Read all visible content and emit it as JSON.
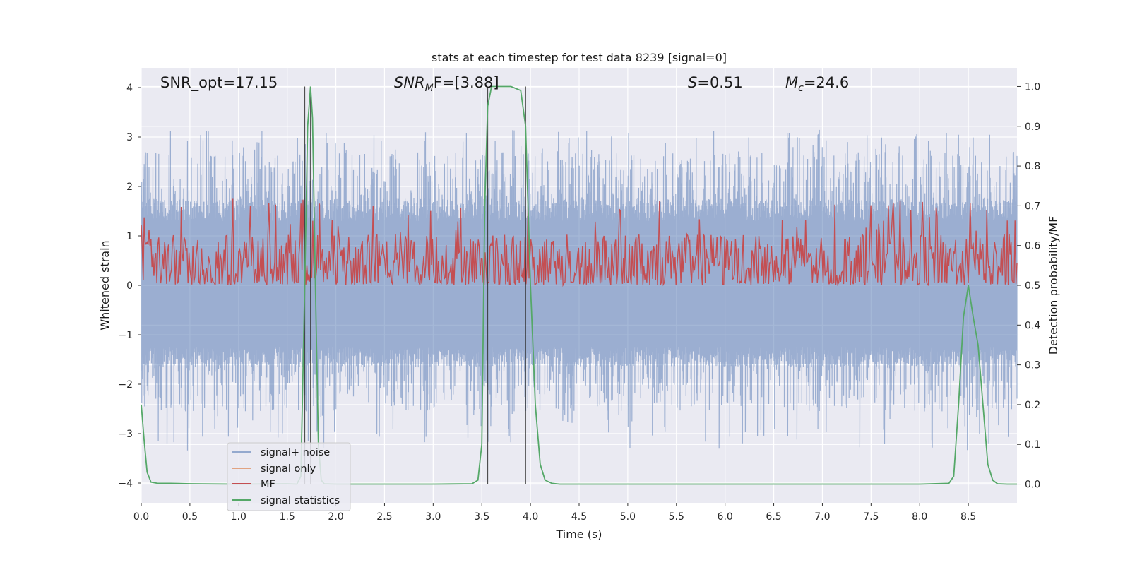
{
  "chart_data": {
    "type": "line",
    "title": "stats at each timestep for test data 8239 [signal=0]",
    "xlabel": "Time (s)",
    "ylabel": "Whitened strain",
    "y2label": "Detection probability/MF",
    "xlim": [
      0,
      9.0
    ],
    "ylim": [
      -4.4,
      4.4
    ],
    "y2lim": [
      -0.047,
      1.047
    ],
    "xticks": [
      0.0,
      0.5,
      1.0,
      1.5,
      2.0,
      2.5,
      3.0,
      3.5,
      4.0,
      4.5,
      5.0,
      5.5,
      6.0,
      6.5,
      7.0,
      7.5,
      8.0,
      8.5
    ],
    "xtick_labels": [
      "0.0",
      "0.5",
      "1.0",
      "1.5",
      "2.0",
      "2.5",
      "3.0",
      "3.5",
      "4.0",
      "4.5",
      "5.0",
      "5.5",
      "6.0",
      "6.5",
      "7.0",
      "7.5",
      "8.0",
      "8.5"
    ],
    "yticks": [
      -4,
      -3,
      -2,
      -1,
      0,
      1,
      2,
      3,
      4
    ],
    "ytick_labels": [
      "−4",
      "−3",
      "−2",
      "−1",
      "0",
      "1",
      "2",
      "3",
      "4"
    ],
    "y2ticks": [
      0.0,
      0.1,
      0.2,
      0.3,
      0.4,
      0.5,
      0.6,
      0.7,
      0.8,
      0.9,
      1.0
    ],
    "y2tick_labels": [
      "0.0",
      "0.1",
      "0.2",
      "0.3",
      "0.4",
      "0.5",
      "0.6",
      "0.7",
      "0.8",
      "0.9",
      "1.0"
    ],
    "grid": true,
    "legend_position": "lower-left",
    "annotations": {
      "snr_opt": "SNR_opt=17.15",
      "snr_mf_main": "SNR",
      "snr_mf_sub": "M",
      "snr_mf_tail": "F=[3.88]",
      "s_italic": "S",
      "s_value": "=0.51",
      "mc_main": "M",
      "mc_sub": "c",
      "mc_value": "=24.6"
    },
    "series": [
      {
        "name": "signal+ noise",
        "axis": "left",
        "color": "#4c72b0",
        "note": "whitened noise, continuous band roughly -1.5..1.6 with spikes to about ±3"
      },
      {
        "name": "signal only",
        "axis": "left",
        "color": "#dd8452",
        "note": "zero signal (signal=0)"
      },
      {
        "name": "MF",
        "axis": "right",
        "color": "#c44e52",
        "note": "matched filter output fluctuating 0.5..0.65 with peaks to ~0.75"
      },
      {
        "name": "signal statistics",
        "axis": "right",
        "color": "#55a868",
        "x": [
          0.0,
          0.03,
          0.06,
          0.1,
          0.17,
          0.3,
          0.5,
          1.0,
          1.5,
          1.6,
          1.64,
          1.68,
          1.71,
          1.74,
          1.76,
          1.79,
          1.82,
          1.85,
          1.88,
          2.0,
          2.5,
          3.0,
          3.4,
          3.46,
          3.5,
          3.53,
          3.56,
          3.6,
          3.65,
          3.7,
          3.8,
          3.9,
          3.95,
          4.0,
          4.05,
          4.1,
          4.15,
          4.22,
          4.3,
          5.0,
          6.0,
          7.0,
          8.0,
          8.3,
          8.35,
          8.4,
          8.45,
          8.5,
          8.55,
          8.6,
          8.7,
          8.75,
          8.8,
          8.9,
          9.0
        ],
        "y": [
          0.2,
          0.11,
          0.03,
          0.005,
          0.002,
          0.002,
          0.001,
          0.0,
          0.001,
          0.0,
          0.02,
          0.5,
          0.9,
          1.0,
          0.92,
          0.5,
          0.1,
          0.01,
          0.001,
          0.0,
          0.0,
          0.0,
          0.001,
          0.01,
          0.1,
          0.7,
          0.95,
          1.0,
          1.0,
          1.0,
          1.0,
          0.99,
          0.9,
          0.5,
          0.2,
          0.05,
          0.01,
          0.002,
          0.0,
          0.0,
          0.0,
          0.0,
          0.0,
          0.002,
          0.02,
          0.2,
          0.42,
          0.5,
          0.42,
          0.35,
          0.05,
          0.01,
          0.001,
          0.0,
          0.0
        ]
      }
    ],
    "vertical_markers": [
      1.68,
      1.74,
      3.56,
      3.95
    ]
  },
  "legend": {
    "items": [
      {
        "label": "signal+ noise",
        "color": "#4c72b0",
        "alpha": 0.55
      },
      {
        "label": "signal only",
        "color": "#dd8452",
        "alpha": 0.7
      },
      {
        "label": "MF",
        "color": "#c44e52",
        "alpha": 1
      },
      {
        "label": "signal statistics",
        "color": "#55a868",
        "alpha": 1
      }
    ]
  }
}
